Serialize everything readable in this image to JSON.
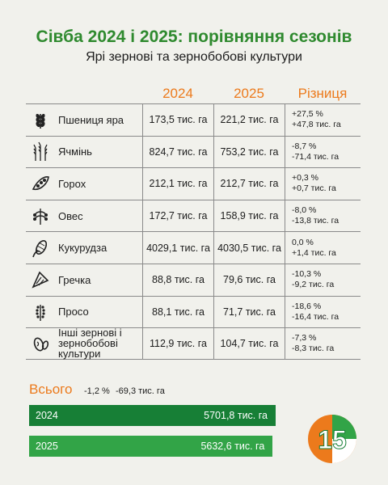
{
  "title": "Сівба 2024 і 2025: порівняння сезонів",
  "subtitle": "Ярі зернові та зернобобові культури",
  "headers": {
    "y2024": "2024",
    "y2025": "2025",
    "diff": "Різниця"
  },
  "chart_data": {
    "type": "table",
    "columns": [
      "2024",
      "2025",
      "Різниця"
    ],
    "rows": [
      {
        "name": "Пшениця яра",
        "icon": "wheat-icon",
        "v2024": "173,5 тис. га",
        "v2025": "221,2 тис. га",
        "diff_pct": "+27,5 %",
        "diff_abs": "+47,8 тис. га"
      },
      {
        "name": "Ячмінь",
        "icon": "barley-icon",
        "v2024": "824,7 тис. га",
        "v2025": "753,2 тис. га",
        "diff_pct": "-8,7 %",
        "diff_abs": "-71,4 тис. га"
      },
      {
        "name": "Горох",
        "icon": "pea-pod-icon",
        "v2024": "212,1 тис. га",
        "v2025": "212,7 тис. га",
        "diff_pct": "+0,3 %",
        "diff_abs": "+0,7 тис. га"
      },
      {
        "name": "Овес",
        "icon": "oat-icon",
        "v2024": "172,7 тис. га",
        "v2025": "158,9 тис. га",
        "diff_pct": "-8,0 %",
        "diff_abs": "-13,8 тис. га"
      },
      {
        "name": "Кукурудза",
        "icon": "corn-icon",
        "v2024": "4029,1 тис. га",
        "v2025": "4030,5 тис. га",
        "diff_pct": "0,0 %",
        "diff_abs": "+1,4 тис. га"
      },
      {
        "name": "Гречка",
        "icon": "buckwheat-icon",
        "v2024": "88,8 тис. га",
        "v2025": "79,6 тис. га",
        "diff_pct": "-10,3 %",
        "diff_abs": "-9,2 тис. га"
      },
      {
        "name": "Просо",
        "icon": "millet-icon",
        "v2024": "88,1 тис. га",
        "v2025": "71,7 тис. га",
        "diff_pct": "-18,6 %",
        "diff_abs": "-16,4 тис. га"
      },
      {
        "name": "Інші зернові і зернобобові культури",
        "icon": "beans-icon",
        "v2024": "112,9 тис. га",
        "v2025": "104,7 тис. га",
        "diff_pct": "-7,3 %",
        "diff_abs": "-8,3 тис. га"
      }
    ],
    "totals": {
      "label": "Всього",
      "diff_pct": "-1,2 %",
      "diff_abs": "-69,3 тис. га",
      "bars": [
        {
          "year": "2024",
          "value": 5701.8,
          "text": "5701,8 тис. га",
          "color": "#177f36"
        },
        {
          "year": "2025",
          "value": 5632.6,
          "text": "5632,6 тис. га",
          "color": "#32a447"
        }
      ]
    }
  },
  "logo": {
    "text": "15",
    "colors": [
      "#ec7a1c",
      "#32a447",
      "#ffffff"
    ]
  }
}
